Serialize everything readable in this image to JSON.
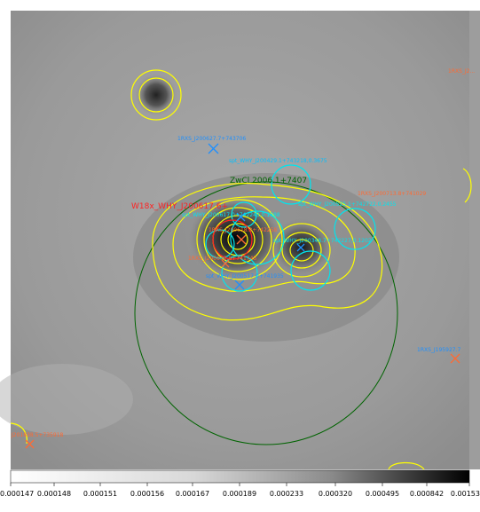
{
  "image": {
    "colormap": "grey-inverted",
    "colors": {
      "background_gray": "#9a9a9a",
      "contour": "#ffff00",
      "cyan_region": "#00e5ee",
      "green_region": "#006400",
      "red_source": "#ff2222",
      "orange_source": "#ff6a33",
      "blue_source": "#1e90ff"
    }
  },
  "labels": {
    "rass_top": "1RXS_J200627.7+743706",
    "spt_top": "spt_WHY_J200429.1+743218,0.3675",
    "zwcl": "ZwCl 2006.1+7407",
    "rxs_right": "1RXS_J200713.8+741029",
    "w18": "W18x_WHY_J200617.6+",
    "spt_mid_right": "spt_WHY_J200525.1+742722,0.2455",
    "spt_center": "spt_WHY_J200617.0+742243,0.1388",
    "cl_center": "1RXS_J200618.3+742258",
    "spt_center2": "spt_WHY_J200348.7+742227,0.1202",
    "rxs_low": "1RXS_J200632.8+741745",
    "spt_low": "spt_WHY_J200517.0+741935",
    "rxs_right2": "1RXS_J195927.7",
    "rxs_bottomleft": "J201838.5+735918",
    "top_right_label": "1RXS_J2..."
  },
  "colorbar": {
    "ticks": [
      "0.000147",
      "0.000148",
      "0.000151",
      "0.000156",
      "0.000167",
      "0.000189",
      "0.000233",
      "0.000320",
      "0.000495",
      "0.000842",
      "0.00153"
    ]
  }
}
